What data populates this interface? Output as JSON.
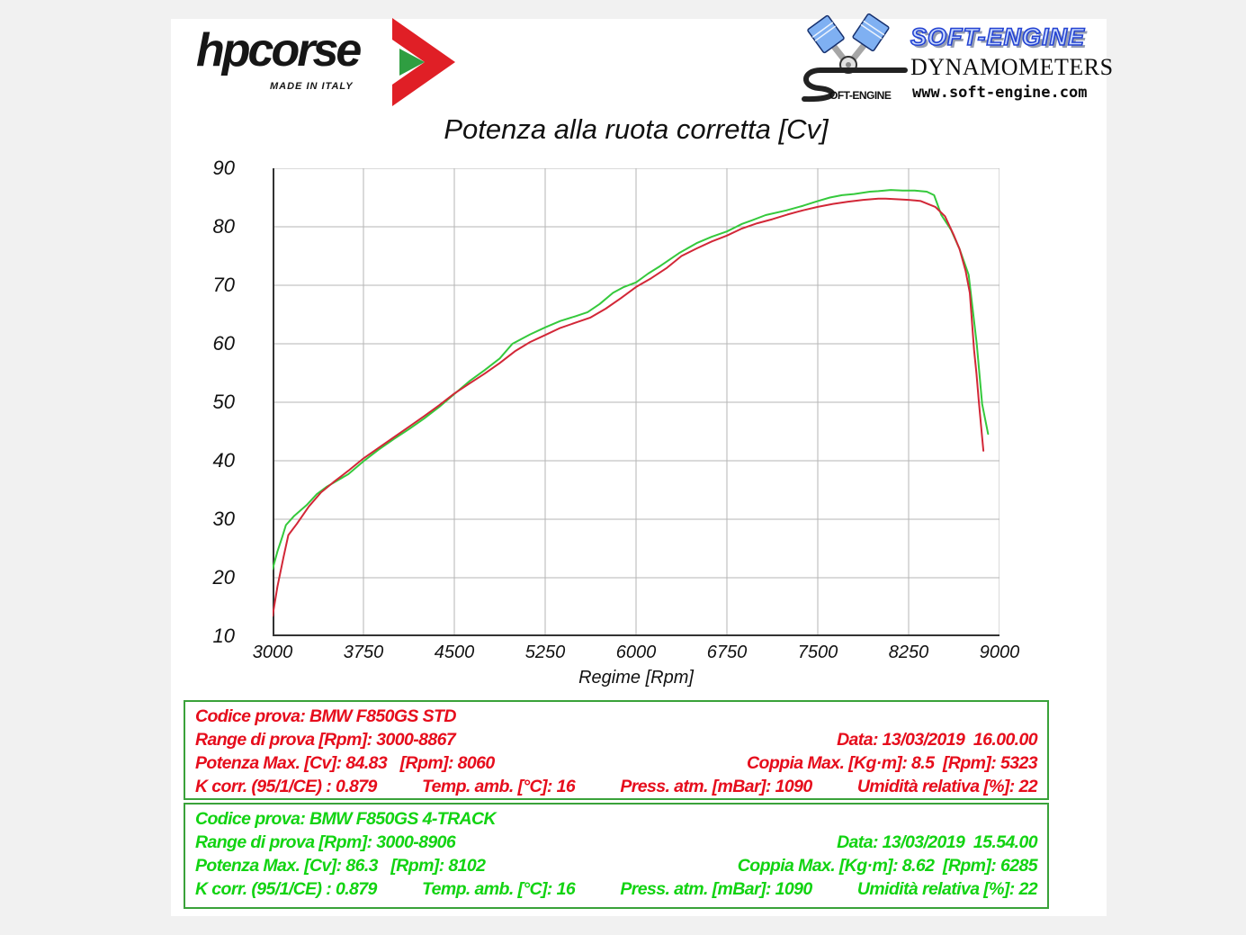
{
  "header": {
    "hpcorse": {
      "brand": "hpcorse",
      "tagline": "MADE IN ITALY"
    },
    "softengine": {
      "s_text": "OFT-ENGINE",
      "brand": "SOFT-ENGINE",
      "sub": "DYNAMOMETERS",
      "url": "www.soft-engine.com"
    }
  },
  "chart_data": {
    "type": "line",
    "title": "Potenza alla ruota corretta [Cv]",
    "xlabel": "Regime [Rpm]",
    "ylabel": "",
    "xlim": [
      3000,
      9000
    ],
    "ylim": [
      10,
      90
    ],
    "x_ticks": [
      3000,
      3750,
      4500,
      5250,
      6000,
      6750,
      7500,
      8250,
      9000
    ],
    "y_ticks": [
      10,
      20,
      30,
      40,
      50,
      60,
      70,
      80,
      90
    ],
    "grid": true,
    "legend_position": "none",
    "grid_color": "#b5b5b5",
    "series": [
      {
        "name": "BMW F850GS 4-TRACK",
        "color": "#35c93c",
        "points": [
          [
            3000,
            21.5
          ],
          [
            3040,
            24.5
          ],
          [
            3080,
            27.0
          ],
          [
            3110,
            29.0
          ],
          [
            3180,
            30.6
          ],
          [
            3280,
            32.4
          ],
          [
            3365,
            34.3
          ],
          [
            3450,
            35.6
          ],
          [
            3550,
            36.8
          ],
          [
            3625,
            37.7
          ],
          [
            3750,
            39.9
          ],
          [
            3875,
            41.9
          ],
          [
            4000,
            43.7
          ],
          [
            4125,
            45.4
          ],
          [
            4250,
            47.2
          ],
          [
            4375,
            49.2
          ],
          [
            4500,
            51.4
          ],
          [
            4625,
            53.6
          ],
          [
            4750,
            55.5
          ],
          [
            4875,
            57.5
          ],
          [
            4980,
            60.0
          ],
          [
            5125,
            61.6
          ],
          [
            5250,
            62.8
          ],
          [
            5375,
            63.9
          ],
          [
            5500,
            64.7
          ],
          [
            5600,
            65.4
          ],
          [
            5700,
            66.8
          ],
          [
            5810,
            68.7
          ],
          [
            5900,
            69.7
          ],
          [
            6000,
            70.5
          ],
          [
            6100,
            72.0
          ],
          [
            6200,
            73.3
          ],
          [
            6355,
            75.5
          ],
          [
            6500,
            77.2
          ],
          [
            6625,
            78.3
          ],
          [
            6750,
            79.2
          ],
          [
            6875,
            80.5
          ],
          [
            6955,
            81.1
          ],
          [
            7070,
            82.0
          ],
          [
            7240,
            82.8
          ],
          [
            7380,
            83.6
          ],
          [
            7500,
            84.4
          ],
          [
            7600,
            85.0
          ],
          [
            7700,
            85.4
          ],
          [
            7800,
            85.6
          ],
          [
            7930,
            86.0
          ],
          [
            8000,
            86.1
          ],
          [
            8102,
            86.3
          ],
          [
            8200,
            86.2
          ],
          [
            8300,
            86.2
          ],
          [
            8400,
            86.0
          ],
          [
            8460,
            85.4
          ],
          [
            8520,
            82.0
          ],
          [
            8600,
            79.5
          ],
          [
            8670,
            76.2
          ],
          [
            8745,
            71.8
          ],
          [
            8812,
            60.0
          ],
          [
            8857,
            49.7
          ],
          [
            8906,
            44.6
          ]
        ]
      },
      {
        "name": "BMW F850GS STD",
        "color": "#d22737",
        "points": [
          [
            3000,
            13.5
          ],
          [
            3040,
            18.5
          ],
          [
            3090,
            23.5
          ],
          [
            3130,
            27.3
          ],
          [
            3200,
            29.2
          ],
          [
            3300,
            32.2
          ],
          [
            3400,
            34.6
          ],
          [
            3500,
            36.3
          ],
          [
            3625,
            38.3
          ],
          [
            3750,
            40.4
          ],
          [
            3875,
            42.2
          ],
          [
            4000,
            44.0
          ],
          [
            4125,
            45.8
          ],
          [
            4250,
            47.6
          ],
          [
            4375,
            49.5
          ],
          [
            4500,
            51.5
          ],
          [
            4625,
            53.2
          ],
          [
            4750,
            54.9
          ],
          [
            4875,
            56.7
          ],
          [
            5000,
            58.7
          ],
          [
            5125,
            60.3
          ],
          [
            5250,
            61.5
          ],
          [
            5375,
            62.7
          ],
          [
            5500,
            63.6
          ],
          [
            5625,
            64.5
          ],
          [
            5750,
            66.0
          ],
          [
            5875,
            67.8
          ],
          [
            6000,
            69.7
          ],
          [
            6125,
            71.2
          ],
          [
            6250,
            72.9
          ],
          [
            6375,
            75.0
          ],
          [
            6500,
            76.3
          ],
          [
            6625,
            77.5
          ],
          [
            6750,
            78.5
          ],
          [
            6875,
            79.7
          ],
          [
            7000,
            80.6
          ],
          [
            7125,
            81.3
          ],
          [
            7250,
            82.1
          ],
          [
            7375,
            82.8
          ],
          [
            7500,
            83.4
          ],
          [
            7625,
            83.9
          ],
          [
            7750,
            84.3
          ],
          [
            7875,
            84.6
          ],
          [
            8000,
            84.8
          ],
          [
            8060,
            84.8
          ],
          [
            8150,
            84.7
          ],
          [
            8250,
            84.6
          ],
          [
            8350,
            84.4
          ],
          [
            8470,
            83.4
          ],
          [
            8550,
            81.8
          ],
          [
            8620,
            78.7
          ],
          [
            8670,
            76.2
          ],
          [
            8720,
            72.5
          ],
          [
            8755,
            68.7
          ],
          [
            8790,
            59.0
          ],
          [
            8810,
            54.9
          ],
          [
            8830,
            50.0
          ],
          [
            8850,
            45.5
          ],
          [
            8867,
            41.7
          ]
        ]
      }
    ]
  },
  "results": [
    {
      "color": "#e60d1c",
      "codice": "Codice prova: BMW F850GS STD",
      "range": "Range di prova [Rpm]: 3000-8867",
      "data": "Data: 13/03/2019  16.00.00",
      "potenza": "Potenza Max. [Cv]: 84.83   [Rpm]: 8060",
      "coppia": "Coppia Max. [Kg·m]: 8.5  [Rpm]: 5323",
      "kcorr": "K corr. (95/1/CE) : 0.879",
      "temp": "Temp. amb. [°C]: 16",
      "press": "Press. atm. [mBar]: 1090",
      "umidita": "Umidità relativa [%]: 22"
    },
    {
      "color": "#12d312",
      "codice": "Codice prova: BMW F850GS 4-TRACK",
      "range": "Range di prova [Rpm]: 3000-8906",
      "data": "Data: 13/03/2019  15.54.00",
      "potenza": "Potenza Max. [Cv]: 86.3   [Rpm]: 8102",
      "coppia": "Coppia Max. [Kg·m]: 8.62  [Rpm]: 6285",
      "kcorr": "K corr. (95/1/CE) : 0.879",
      "temp": "Temp. amb. [°C]: 16",
      "press": "Press. atm. [mBar]: 1090",
      "umidita": "Umidità relativa [%]: 22"
    }
  ]
}
